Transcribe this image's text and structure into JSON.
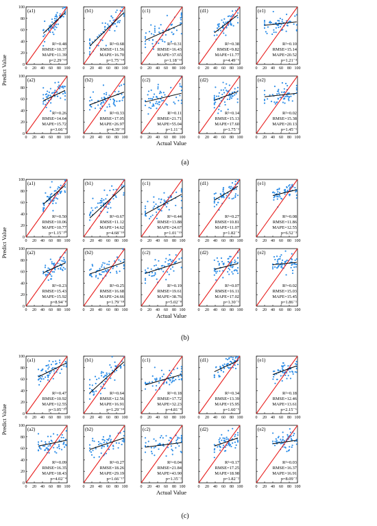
{
  "figure": {
    "y_axis_title": "Predict Value",
    "x_axis_title": "Actual Value",
    "axis_range": [
      0,
      100
    ],
    "ticks": [
      0,
      20,
      40,
      60,
      80,
      100
    ],
    "identity_line_color": "#e8201f",
    "point_color": "#2e8ee8",
    "fit_line_color": "#000000"
  },
  "chart_data": [
    {
      "group": "(a)",
      "type": "scatter",
      "panels": [
        {
          "tag": "(a1)",
          "r2": "R²=0.48",
          "rmse": "RMSE=10.37",
          "mape": "MAPE=11.39",
          "p": "p=2.29⁻¹⁹",
          "x_range": [
            42,
            95
          ],
          "fit": [
            [
              42,
              54
            ],
            [
              95,
              90
            ]
          ],
          "spread": 8
        },
        {
          "tag": "(b1)",
          "r2": "R²=0.68",
          "rmse": "RMSE=11.56",
          "mape": "MAPE=16.70",
          "p": "p=1.75⁻⁶⁴",
          "x_range": [
            15,
            98
          ],
          "fit": [
            [
              15,
              32
            ],
            [
              98,
              90
            ]
          ],
          "spread": 10
        },
        {
          "tag": "(c1)",
          "r2": "R²=0.31",
          "rmse": "RMSE=16.43",
          "mape": "MAPE=37.65",
          "p": "p=1.18⁻¹³",
          "x_range": [
            10,
            98
          ],
          "fit": [
            [
              10,
              42
            ],
            [
              98,
              70
            ]
          ],
          "spread": 11
        },
        {
          "tag": "(d1)",
          "r2": "R²=0.38",
          "rmse": "RMSE=9.82",
          "mape": "MAPE=11.77",
          "p": "p=4.49⁻⁶",
          "x_range": [
            38,
            95
          ],
          "fit": [
            [
              38,
              55
            ],
            [
              95,
              86
            ]
          ],
          "spread": 8
        },
        {
          "tag": "(e1)",
          "r2": "R²=0.10",
          "rmse": "RMSE=15.14",
          "mape": "MAPE=20.52",
          "p": "p=1.21⁻³",
          "x_range": [
            20,
            98
          ],
          "fit": [
            [
              20,
              68
            ],
            [
              98,
              74
            ]
          ],
          "spread": 8
        },
        {
          "tag": "(a2)",
          "r2": "R²=0.26",
          "rmse": "RMSE=14.64",
          "mape": "MAPE=15.72",
          "p": "p=3.66⁻⁹",
          "x_range": [
            42,
            95
          ],
          "fit": [
            [
              42,
              57
            ],
            [
              95,
              75
            ]
          ],
          "spread": 8
        },
        {
          "tag": "(b2)",
          "r2": "R²=0.33",
          "rmse": "RMSE=17.05",
          "mape": "MAPE=26.97",
          "p": "p=4.39⁻²³",
          "x_range": [
            15,
            98
          ],
          "fit": [
            [
              15,
              50
            ],
            [
              98,
              72
            ]
          ],
          "spread": 9
        },
        {
          "tag": "(c2)",
          "r2": "R²=0.11",
          "rmse": "RMSE=21.71",
          "mape": "MAPE=55.04",
          "p": "p=1.11⁻⁴",
          "x_range": [
            10,
            98
          ],
          "fit": [
            [
              10,
              55
            ],
            [
              98,
              70
            ]
          ],
          "spread": 10
        },
        {
          "tag": "(d2)",
          "r2": "R²=0.14",
          "rmse": "RMSE=15.13",
          "mape": "MAPE=17.60",
          "p": "p=1.75⁻²",
          "x_range": [
            38,
            95
          ],
          "fit": [
            [
              38,
              58
            ],
            [
              95,
              73
            ]
          ],
          "spread": 10
        },
        {
          "tag": "(e2)",
          "r2": "R²=0.02",
          "rmse": "RMSE=15.38",
          "mape": "MAPE=20.13",
          "p": "p=1.45⁻¹",
          "x_range": [
            20,
            98
          ],
          "fit": [
            [
              20,
              64
            ],
            [
              98,
              70
            ]
          ],
          "spread": 8
        }
      ]
    },
    {
      "group": "(b)",
      "type": "scatter",
      "panels": [
        {
          "tag": "(a1)",
          "r2": "R²=0.50",
          "rmse": "RMSE=10.06",
          "mape": "MAPE=10.77",
          "p": "p=1.15⁻²⁰",
          "x_range": [
            42,
            95
          ],
          "fit": [
            [
              42,
              57
            ],
            [
              95,
              90
            ]
          ],
          "spread": 8
        },
        {
          "tag": "(b1)",
          "r2": "R²=0.67",
          "rmse": "RMSE=11.12",
          "mape": "MAPE=14.62",
          "p": "p=4.68⁻⁵⁹",
          "x_range": [
            15,
            98
          ],
          "fit": [
            [
              15,
              33
            ],
            [
              98,
              88
            ]
          ],
          "spread": 10
        },
        {
          "tag": "(c1)",
          "r2": "R²=0.44",
          "rmse": "RMSE=13.88",
          "mape": "MAPE=24.67",
          "p": "p=1.01⁻¹⁹",
          "x_range": [
            10,
            98
          ],
          "fit": [
            [
              10,
              40
            ],
            [
              98,
              74
            ]
          ],
          "spread": 10
        },
        {
          "tag": "(d1)",
          "r2": "R²=0.27",
          "rmse": "RMSE=10.81",
          "mape": "MAPE=11.07",
          "p": "p=1.82⁻⁴",
          "x_range": [
            38,
            95
          ],
          "fit": [
            [
              38,
              64
            ],
            [
              95,
              88
            ]
          ],
          "spread": 8
        },
        {
          "tag": "(e1)",
          "r2": "R²=0.08",
          "rmse": "RMSE=11.86",
          "mape": "MAPE=12.55",
          "p": "p=6.52⁻³",
          "x_range": [
            40,
            98
          ],
          "fit": [
            [
              40,
              72
            ],
            [
              98,
              82
            ]
          ],
          "spread": 7
        },
        {
          "tag": "(a2)",
          "r2": "R²=0.23",
          "rmse": "RMSE=15.43",
          "mape": "MAPE=15.92",
          "p": "p=8.94⁻⁸",
          "x_range": [
            42,
            95
          ],
          "fit": [
            [
              42,
              58
            ],
            [
              95,
              75
            ]
          ],
          "spread": 9
        },
        {
          "tag": "(b2)",
          "r2": "R²=0.25",
          "rmse": "RMSE=16.68",
          "mape": "MAPE=24.66",
          "p": "p=1.79⁻¹⁸",
          "x_range": [
            15,
            98
          ],
          "fit": [
            [
              15,
              56
            ],
            [
              98,
              76
            ]
          ],
          "spread": 9
        },
        {
          "tag": "(c2)",
          "r2": "R²=0.19",
          "rmse": "RMSE=19.61",
          "mape": "MAPE=38.76",
          "p": "p=5.02⁻⁸",
          "x_range": [
            10,
            98
          ],
          "fit": [
            [
              10,
              57
            ],
            [
              98,
              77
            ]
          ],
          "spread": 10
        },
        {
          "tag": "(d2)",
          "r2": "R²=0.07",
          "rmse": "RMSE=16.11",
          "mape": "MAPE=17.02",
          "p": "p=1.30⁻¹",
          "x_range": [
            38,
            95
          ],
          "fit": [
            [
              38,
              64
            ],
            [
              95,
              74
            ]
          ],
          "spread": 9
        },
        {
          "tag": "(e2)",
          "r2": "R²=0.02",
          "rmse": "RMSE=15.03",
          "mape": "MAPE=15.45",
          "p": "p=1.86⁻¹",
          "x_range": [
            40,
            98
          ],
          "fit": [
            [
              40,
              72
            ],
            [
              98,
              76
            ]
          ],
          "spread": 8
        }
      ]
    },
    {
      "group": "(c)",
      "type": "scatter",
      "panels": [
        {
          "tag": "(a1)",
          "r2": "R²=0.47",
          "rmse": "RMSE=10.92",
          "mape": "MAPE=12.55",
          "p": "p=3.05⁻²⁰",
          "x_range": [
            30,
            98
          ],
          "fit": [
            [
              30,
              64
            ],
            [
              98,
              88
            ]
          ],
          "spread": 8
        },
        {
          "tag": "(b1)",
          "r2": "R²=0.64",
          "rmse": "RMSE=12.56",
          "mape": "MAPE=16.91",
          "p": "p=1.29⁻⁵⁴",
          "x_range": [
            15,
            98
          ],
          "fit": [
            [
              15,
              36
            ],
            [
              98,
              90
            ]
          ],
          "spread": 10
        },
        {
          "tag": "(c1)",
          "r2": "R²=0.18",
          "rmse": "RMSE=17.72",
          "mape": "MAPE=32.23",
          "p": "p=4.81⁻⁸",
          "x_range": [
            10,
            98
          ],
          "fit": [
            [
              10,
              50
            ],
            [
              98,
              68
            ]
          ],
          "spread": 9
        },
        {
          "tag": "(d1)",
          "r2": "R²=0.34",
          "rmse": "RMSE=13.39",
          "mape": "MAPE=15.95",
          "p": "p=1.60⁻⁵",
          "x_range": [
            38,
            95
          ],
          "fit": [
            [
              38,
              73
            ],
            [
              95,
              92
            ]
          ],
          "spread": 7
        },
        {
          "tag": "(e1)",
          "r2": "R²=0.18",
          "rmse": "RMSE=12.46",
          "mape": "MAPE=13.61",
          "p": "p=2.15⁻⁶",
          "x_range": [
            40,
            98
          ],
          "fit": [
            [
              40,
              68
            ],
            [
              98,
              83
            ]
          ],
          "spread": 8
        },
        {
          "tag": "(a2)",
          "r2": "R²=0.09",
          "rmse": "RMSE=16.35",
          "mape": "MAPE=18.43",
          "p": "p=4.02⁻⁴",
          "x_range": [
            30,
            98
          ],
          "fit": [
            [
              30,
              64
            ],
            [
              98,
              74
            ]
          ],
          "spread": 9
        },
        {
          "tag": "(b2)",
          "r2": "R²=0.27",
          "rmse": "RMSE=18.26",
          "mape": "MAPE=29.19",
          "p": "p=1.66⁻¹⁷",
          "x_range": [
            15,
            98
          ],
          "fit": [
            [
              15,
              58
            ],
            [
              98,
              78
            ]
          ],
          "spread": 9
        },
        {
          "tag": "(c2)",
          "r2": "R²=0.04",
          "rmse": "RMSE=21.84",
          "mape": "MAPE=43.90",
          "p": "p=1.35⁻²",
          "x_range": [
            10,
            98
          ],
          "fit": [
            [
              10,
              62
            ],
            [
              98,
              70
            ]
          ],
          "spread": 9
        },
        {
          "tag": "(d2)",
          "r2": "R²=0.17",
          "rmse": "RMSE=17.25",
          "mape": "MAPE=18.98",
          "p": "p=1.82⁻²",
          "x_range": [
            38,
            95
          ],
          "fit": [
            [
              38,
              64
            ],
            [
              95,
              78
            ]
          ],
          "spread": 8
        },
        {
          "tag": "(e2)",
          "r2": "R²=0.03",
          "rmse": "RMSE=16.37",
          "mape": "MAPE=16.91",
          "p": "p=8.09⁻²",
          "x_range": [
            40,
            98
          ],
          "fit": [
            [
              40,
              68
            ],
            [
              98,
              74
            ]
          ],
          "spread": 8
        }
      ]
    }
  ]
}
